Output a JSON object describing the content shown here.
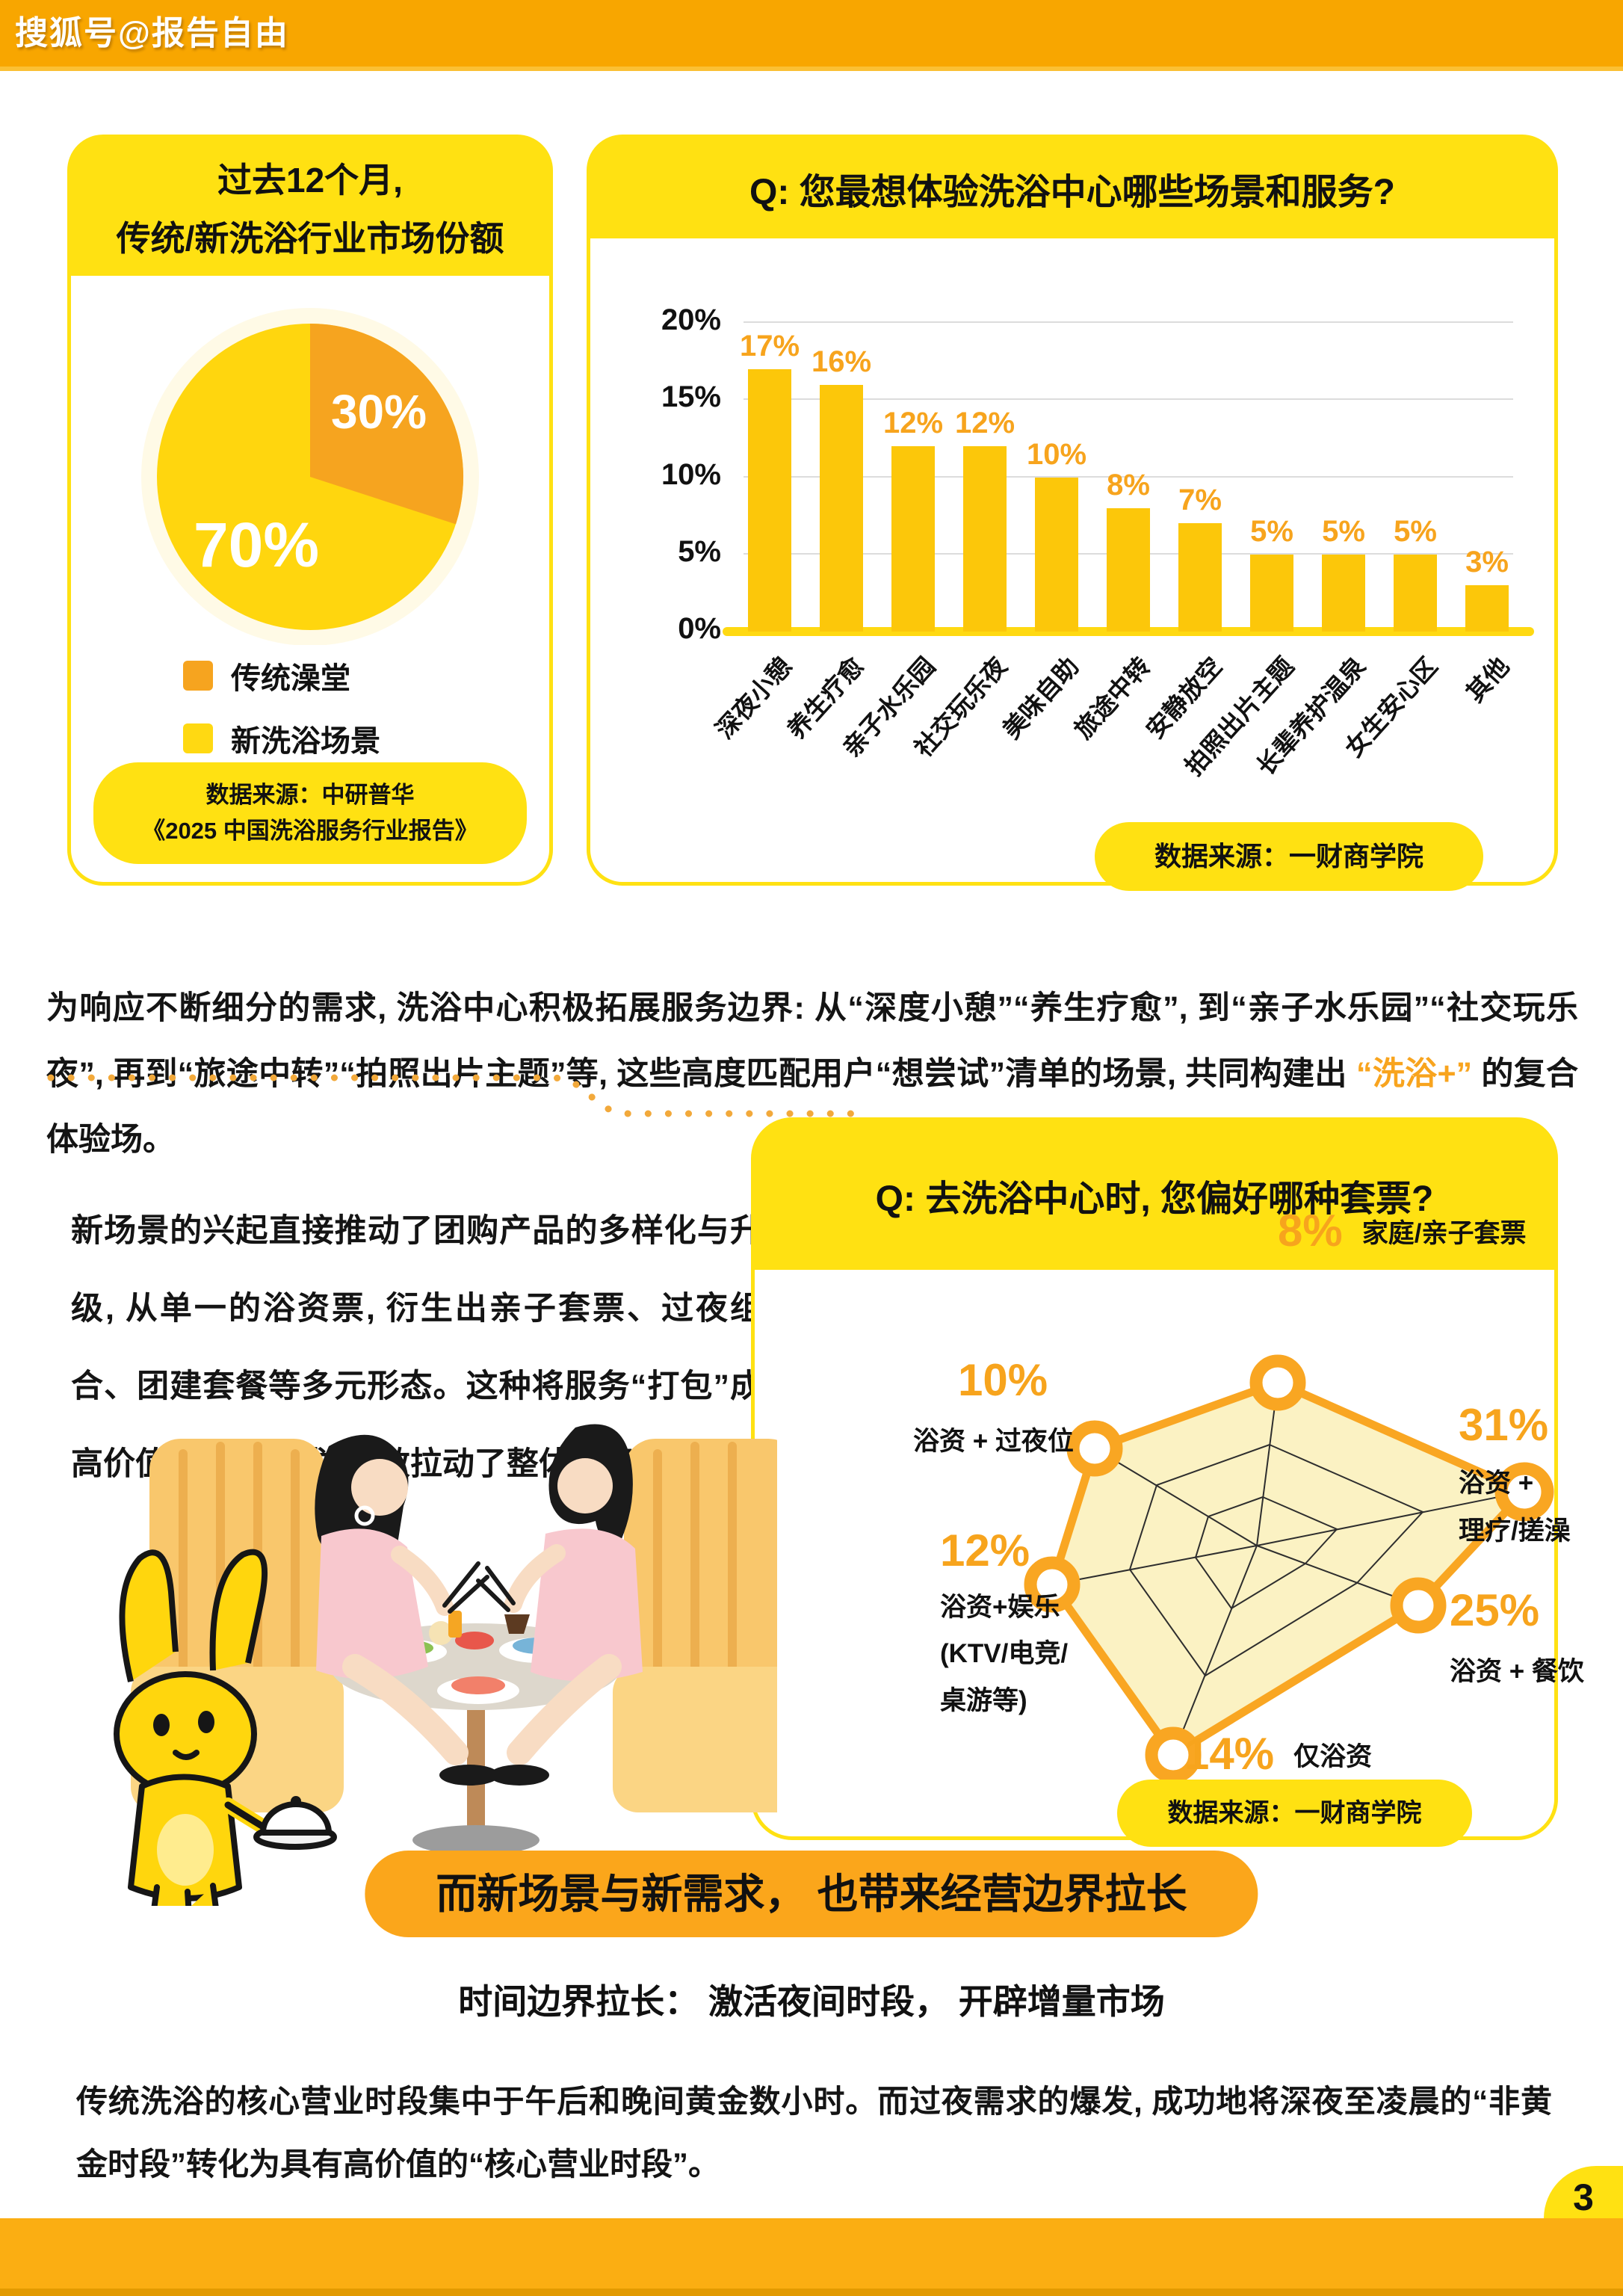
{
  "topbar": {
    "brand": "搜狐号@报告自由"
  },
  "footer": {
    "page_number": "3"
  },
  "pie_card": {
    "title_line1": "过去12个月,",
    "title_line2": "传统/新洗浴行业市场份额",
    "source_line1": "数据来源：中研普华",
    "source_line2": "《2025 中国洗浴服务行业报告》"
  },
  "bar_card": {
    "title": "Q: 您最想体验洗浴中心哪些场景和服务?",
    "source": "数据来源：一财商学院"
  },
  "radar_card": {
    "title": "Q: 去洗浴中心时, 您偏好哪种套票?",
    "source": "数据来源：一财商学院"
  },
  "para1": {
    "part1": "为响应不断细分的需求, 洗浴中心积极拓展服务边界: 从“深度小憩”“养生疗愈”, 到“亲子水乐园”“社交玩乐夜”, 再到“旅途中转”“拍照出片主题”等, 这些高度匹配用户“想尝试”清单的场景, 共同构建出 ",
    "highlight": "“洗浴+”",
    "part2": " 的复合体验场。"
  },
  "sec2_text": "新场景的兴起直接推动了团购产品的多样化与升级, 从单一的浴资票, 衍生出亲子套票、过夜组合、团建套餐等多元形态。这种将服务“打包”成高价值套餐的模式, 有效拉动了整体消费增长。",
  "banner": {
    "text": "而新场景与新需求， 也带来经营边界拉长"
  },
  "subtitle": {
    "text": "时间边界拉长： 激活夜间时段， 开辟增量市场"
  },
  "para2": "传统洗浴的核心营业时段集中于午后和晚间黄金数小时。而过夜需求的爆发, 成功地将深夜至凌晨的“非黄金时段”转化为具有高价值的“核心营业时段”。",
  "colors": {
    "topbar_orange": "#F8A600",
    "header_yellow": "#FFE112",
    "bar_yellow": "#FCC70A",
    "value_orange": "#F7A41D",
    "pie_orange": "#F6A41F",
    "pie_yellow": "#FFD60E",
    "banner_orange": "#FBA61B",
    "radar_fill": "#FBF2C3",
    "radar_stroke": "#F9A622"
  },
  "chart_data": [
    {
      "type": "pie",
      "title": "过去12个月，传统/新洗浴行业市场份额",
      "slices": [
        {
          "label": "传统澡堂",
          "value": 30,
          "pct": "30%",
          "color": "#F6A41F"
        },
        {
          "label": "新洗浴场景",
          "value": 70,
          "pct": "70%",
          "color": "#FFD60E"
        }
      ],
      "legend_position": "below"
    },
    {
      "type": "bar",
      "title": "Q: 您最想体验洗浴中心哪些场景和服务?",
      "categories": [
        "深夜小憩",
        "养生疗愈",
        "亲子水乐园",
        "社交玩乐夜",
        "美味自助",
        "旅途中转",
        "安静放空",
        "拍照出片主题",
        "长辈养护温泉",
        "女生安心区",
        "其他"
      ],
      "values": [
        17,
        16,
        12,
        12,
        10,
        8,
        7,
        5,
        5,
        5,
        3
      ],
      "xlabel": "",
      "ylabel": "",
      "ylim": [
        0,
        20
      ],
      "y_ticks": [
        0,
        5,
        10,
        15,
        20
      ],
      "grid": true
    },
    {
      "type": "radar",
      "title": "Q: 去洗浴中心时, 您偏好哪种套票?",
      "points": [
        {
          "pct": "8%",
          "value": 8,
          "line1": "家庭/亲子套票"
        },
        {
          "pct": "31%",
          "value": 31,
          "line1": "浴资 +",
          "line2": "理疗/搓澡"
        },
        {
          "pct": "25%",
          "value": 25,
          "line1": "浴资 + 餐饮"
        },
        {
          "pct": "14%",
          "value": 14,
          "line1": "仅浴资"
        },
        {
          "pct": "12%",
          "value": 12,
          "line1": "浴资+娱乐",
          "line2": "(KTV/电竞/",
          "line3": "桌游等)"
        },
        {
          "pct": "10%",
          "value": 10,
          "line1": "浴资 + 过夜位"
        }
      ]
    }
  ]
}
